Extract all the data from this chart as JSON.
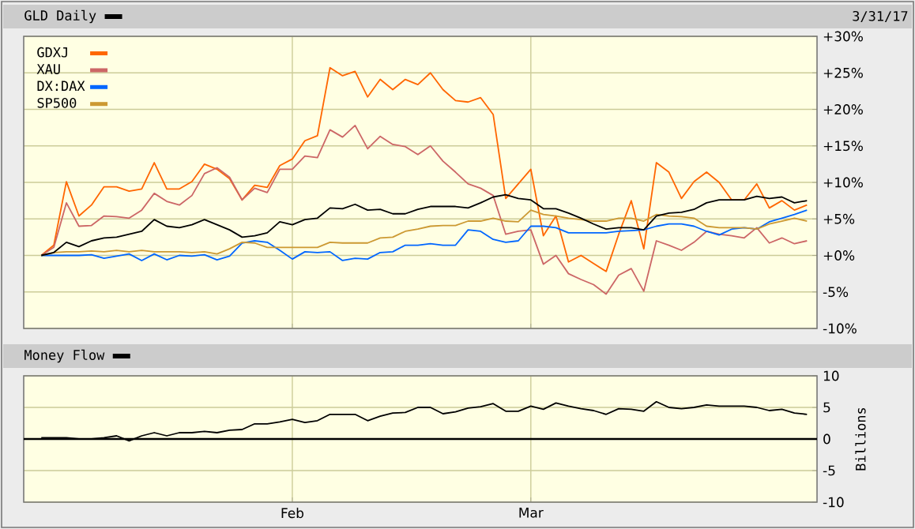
{
  "chart_data": [
    {
      "type": "line",
      "title": "GLD Daily",
      "subtitle": "3/31/17",
      "categories": [
        null,
        null,
        null,
        null,
        null,
        null,
        null,
        null,
        null,
        null,
        null,
        null,
        null,
        null,
        null,
        null,
        null,
        null,
        null,
        null,
        null,
        null,
        null,
        null,
        null,
        null,
        null,
        null,
        null,
        null,
        null,
        null,
        null,
        null,
        null,
        null,
        null,
        null,
        null,
        null,
        null,
        null,
        null,
        null,
        null,
        null,
        null,
        null,
        null,
        null,
        null,
        null,
        null,
        null,
        null,
        null,
        null,
        null,
        null,
        null,
        null,
        null
      ],
      "series": [
        {
          "name": "GDXJ",
          "color": "#ff6600",
          "values": [
            0,
            1.4,
            10.1,
            5.4,
            6.9,
            9.4,
            9.4,
            8.8,
            9.1,
            12.7,
            9.1,
            9.1,
            10.1,
            12.5,
            11.8,
            10.5,
            7.6,
            9.6,
            9.3,
            12.3,
            13.2,
            15.7,
            16.4,
            25.7,
            24.6,
            25.2,
            21.7,
            24.1,
            22.7,
            24.1,
            23.4,
            25.0,
            22.7,
            21.2,
            21.0,
            21.6,
            19.3,
            7.8,
            9.8,
            11.8,
            2.7,
            5.4,
            -0.9,
            0,
            -1.1,
            -2.2,
            2.9,
            7.5,
            0.9,
            12.7,
            11.4,
            7.8,
            10.1,
            11.4,
            10.0,
            7.6,
            7.6,
            9.8,
            6.5,
            7.5,
            6.2,
            6.9
          ]
        },
        {
          "name": "XAU",
          "color": "#cc6666",
          "values": [
            0,
            1.1,
            7.2,
            4.0,
            4.1,
            5.4,
            5.3,
            5.1,
            6.2,
            8.5,
            7.4,
            6.9,
            8.2,
            11.2,
            12.0,
            10.7,
            7.6,
            9.2,
            8.6,
            11.8,
            11.8,
            13.6,
            13.4,
            17.2,
            16.2,
            17.8,
            14.6,
            16.3,
            15.2,
            14.9,
            13.8,
            15.0,
            12.9,
            11.4,
            9.8,
            9.2,
            8.2,
            2.9,
            3.3,
            3.5,
            -1.2,
            0,
            -2.5,
            -3.3,
            -4.0,
            -5.3,
            -2.7,
            -1.8,
            -4.9,
            2.0,
            1.4,
            0.7,
            1.8,
            3.3,
            2.9,
            2.7,
            2.4,
            3.8,
            1.7,
            2.4,
            1.6,
            2.0
          ]
        },
        {
          "name": "DX:DAX",
          "color": "#0066ff",
          "values": [
            0,
            0,
            0,
            0,
            0.1,
            -0.4,
            -0.1,
            0.2,
            -0.7,
            0.2,
            -0.6,
            0,
            -0.1,
            0.1,
            -0.6,
            -0.1,
            1.7,
            2.0,
            1.8,
            0.7,
            -0.5,
            0.5,
            0.4,
            0.5,
            -0.7,
            -0.4,
            -0.5,
            0.4,
            0.5,
            1.4,
            1.4,
            1.6,
            1.4,
            1.4,
            3.5,
            3.3,
            2.2,
            1.8,
            2.0,
            4.0,
            4.0,
            3.8,
            3.1,
            3.1,
            3.1,
            3.1,
            3.3,
            3.4,
            3.5,
            4.0,
            4.3,
            4.3,
            4.0,
            3.3,
            2.8,
            3.6,
            3.8,
            3.6,
            4.6,
            5.1,
            5.6,
            6.2
          ]
        },
        {
          "name": "SP500",
          "color": "#cc9933",
          "values": [
            0,
            0.4,
            0.5,
            0.5,
            0.6,
            0.5,
            0.7,
            0.5,
            0.7,
            0.5,
            0.5,
            0.5,
            0.4,
            0.5,
            0.2,
            0.9,
            1.8,
            1.7,
            1.1,
            1.1,
            1.1,
            1.1,
            1.1,
            1.8,
            1.7,
            1.7,
            1.7,
            2.4,
            2.5,
            3.3,
            3.6,
            4.0,
            4.1,
            4.1,
            4.7,
            4.7,
            5.1,
            4.7,
            4.6,
            6.2,
            5.6,
            5.4,
            5.1,
            4.9,
            4.7,
            4.7,
            5.1,
            5.1,
            4.7,
            5.6,
            5.4,
            5.3,
            5.1,
            4.0,
            3.8,
            3.8,
            3.8,
            3.6,
            4.3,
            4.7,
            5.1,
            4.7
          ]
        },
        {
          "color": "#000000",
          "values": [
            0,
            0.4,
            1.8,
            1.2,
            2.0,
            2.4,
            2.5,
            2.9,
            3.3,
            4.9,
            4.0,
            3.8,
            4.2,
            4.9,
            4.2,
            3.5,
            2.5,
            2.7,
            3.1,
            4.6,
            4.2,
            4.9,
            5.1,
            6.5,
            6.4,
            7.0,
            6.2,
            6.3,
            5.7,
            5.7,
            6.3,
            6.7,
            6.7,
            6.7,
            6.5,
            7.2,
            8.0,
            8.3,
            7.8,
            7.6,
            6.4,
            6.4,
            5.8,
            5.1,
            4.3,
            3.6,
            3.8,
            3.8,
            3.5,
            5.4,
            5.8,
            5.9,
            6.3,
            7.2,
            7.6,
            7.6,
            7.6,
            8.1,
            7.8,
            8.0,
            7.2,
            7.5
          ]
        }
      ],
      "ylim": [
        -10,
        30
      ],
      "yticks": [
        {
          "value": -10,
          "label": "-10%"
        },
        {
          "value": -5,
          "label": "-5%"
        },
        {
          "value": 0,
          "label": "+0%"
        },
        {
          "value": 5,
          "label": "+5%"
        },
        {
          "value": 10,
          "label": "+10%"
        },
        {
          "value": 15,
          "label": "+15%"
        },
        {
          "value": 20,
          "label": "+20%"
        },
        {
          "value": 25,
          "label": "+25%"
        },
        {
          "value": 30,
          "label": "+30%"
        }
      ],
      "grid": true,
      "legend": "top left",
      "tick_labels": "y"
    },
    {
      "type": "line",
      "title": "Money Flow",
      "ylabel": "Billions",
      "categories": [
        null,
        null,
        null,
        null,
        null,
        null,
        null,
        null,
        null,
        null,
        null,
        null,
        null,
        null,
        null,
        null,
        null,
        null,
        null,
        null,
        "Feb",
        null,
        null,
        null,
        null,
        null,
        null,
        null,
        null,
        null,
        null,
        null,
        null,
        null,
        null,
        null,
        null,
        null,
        null,
        "Mar",
        null,
        null,
        null,
        null,
        null,
        null,
        null,
        null,
        null,
        null,
        null,
        null,
        null,
        null,
        null,
        null,
        null,
        null,
        null,
        null,
        null,
        null
      ],
      "series": [
        {
          "color": "#000000",
          "values": [
            0.2,
            0.2,
            0.2,
            0,
            0,
            0.2,
            0.5,
            -0.3,
            0.5,
            1.0,
            0.5,
            1.0,
            1.0,
            1.2,
            1.0,
            1.4,
            1.5,
            2.4,
            2.4,
            2.7,
            3.1,
            2.6,
            2.9,
            3.9,
            3.9,
            3.9,
            2.9,
            3.6,
            4.1,
            4.2,
            5.0,
            5.0,
            4.0,
            4.3,
            4.9,
            5.1,
            5.6,
            4.4,
            4.4,
            5.2,
            4.7,
            5.7,
            5.2,
            4.8,
            4.5,
            3.9,
            4.8,
            4.7,
            4.4,
            5.9,
            5.0,
            4.8,
            5.0,
            5.4,
            5.2,
            5.2,
            5.2,
            5.0,
            4.5,
            4.7,
            4.1,
            3.9
          ]
        }
      ],
      "ylim": [
        -10,
        10
      ],
      "yticks": [
        -10,
        -5,
        0,
        5,
        10
      ],
      "ref_lines": [
        {
          "axis": "y",
          "value": 0
        }
      ],
      "grid": true
    }
  ]
}
